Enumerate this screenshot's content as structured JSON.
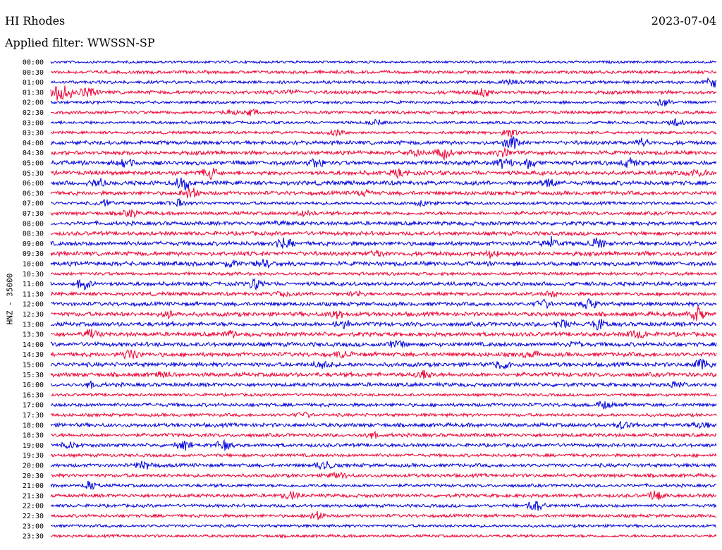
{
  "header": {
    "station": "HI Rhodes",
    "date": "2023-07-04",
    "filter": "Applied filter: WWSSN-SP"
  },
  "chart_data": {
    "type": "line",
    "title": "HI Rhodes",
    "ylabel": "HNZ - 35000",
    "row_labels": [
      "00:00",
      "00:30",
      "01:00",
      "01:30",
      "02:00",
      "02:30",
      "03:00",
      "03:30",
      "04:00",
      "04:30",
      "05:00",
      "05:30",
      "06:00",
      "06:30",
      "07:00",
      "07:30",
      "08:00",
      "08:30",
      "09:00",
      "09:30",
      "10:00",
      "10:30",
      "11:00",
      "11:30",
      "12:00",
      "12:30",
      "13:00",
      "13:30",
      "14:00",
      "14:30",
      "15:00",
      "15:30",
      "16:00",
      "16:30",
      "17:00",
      "17:30",
      "18:00",
      "18:30",
      "19:00",
      "19:30",
      "20:00",
      "20:30",
      "21:00",
      "21:30",
      "22:00",
      "22:30",
      "23:00",
      "23:30"
    ],
    "series_colors": [
      "#0000dd",
      "#ee0033"
    ],
    "traces": [
      {
        "label": "00:00",
        "level": 0.3,
        "bursts": []
      },
      {
        "label": "00:30",
        "level": 0.5,
        "bursts": []
      },
      {
        "label": "01:00",
        "level": 0.5,
        "bursts": [
          [
            0.69,
            0.25
          ],
          [
            0.995,
            0.7
          ]
        ]
      },
      {
        "label": "01:30",
        "level": 0.6,
        "bursts": [
          [
            0.01,
            0.8
          ],
          [
            0.02,
            1.0
          ],
          [
            0.055,
            0.7
          ],
          [
            0.36,
            0.3
          ],
          [
            0.65,
            0.5
          ]
        ]
      },
      {
        "label": "02:00",
        "level": 0.4,
        "bursts": [
          [
            0.92,
            0.5
          ]
        ]
      },
      {
        "label": "02:30",
        "level": 0.5,
        "bursts": [
          [
            0.27,
            0.3
          ],
          [
            0.3,
            0.35
          ]
        ]
      },
      {
        "label": "03:00",
        "level": 0.4,
        "bursts": [
          [
            0.49,
            0.3
          ],
          [
            0.94,
            0.4
          ]
        ]
      },
      {
        "label": "03:30",
        "level": 0.4,
        "bursts": [
          [
            0.43,
            0.4
          ],
          [
            0.69,
            0.6
          ]
        ]
      },
      {
        "label": "04:00",
        "level": 0.7,
        "bursts": [
          [
            0.69,
            0.9
          ],
          [
            0.89,
            0.5
          ]
        ]
      },
      {
        "label": "04:30",
        "level": 0.7,
        "bursts": [
          [
            0.55,
            0.4
          ],
          [
            0.59,
            0.6
          ],
          [
            0.68,
            0.5
          ]
        ]
      },
      {
        "label": "05:00",
        "level": 0.8,
        "bursts": [
          [
            0.11,
            0.7
          ],
          [
            0.4,
            0.6
          ],
          [
            0.68,
            0.6
          ],
          [
            0.72,
            0.6
          ],
          [
            0.87,
            0.5
          ]
        ]
      },
      {
        "label": "05:30",
        "level": 0.8,
        "bursts": [
          [
            0.24,
            0.6
          ],
          [
            0.52,
            0.4
          ],
          [
            0.97,
            0.5
          ]
        ]
      },
      {
        "label": "06:00",
        "level": 0.8,
        "bursts": [
          [
            0.07,
            0.5
          ],
          [
            0.2,
            0.9
          ],
          [
            0.75,
            0.5
          ]
        ]
      },
      {
        "label": "06:30",
        "level": 0.7,
        "bursts": [
          [
            0.21,
            0.7
          ],
          [
            0.47,
            0.3
          ]
        ]
      },
      {
        "label": "07:00",
        "level": 0.5,
        "bursts": [
          [
            0.08,
            0.4
          ],
          [
            0.19,
            0.4
          ],
          [
            0.56,
            0.3
          ]
        ]
      },
      {
        "label": "07:30",
        "level": 0.6,
        "bursts": [
          [
            0.12,
            0.4
          ],
          [
            0.38,
            0.3
          ]
        ]
      },
      {
        "label": "08:00",
        "level": 0.7,
        "bursts": [
          [
            0.34,
            0.2
          ]
        ]
      },
      {
        "label": "08:30",
        "level": 0.7,
        "bursts": []
      },
      {
        "label": "09:00",
        "level": 0.8,
        "bursts": [
          [
            0.35,
            0.6
          ],
          [
            0.75,
            0.7
          ],
          [
            0.82,
            0.6
          ]
        ]
      },
      {
        "label": "09:30",
        "level": 0.8,
        "bursts": [
          [
            0.49,
            0.3
          ],
          [
            0.66,
            0.4
          ]
        ]
      },
      {
        "label": "10:00",
        "level": 0.8,
        "bursts": [
          [
            0.27,
            0.4
          ],
          [
            0.32,
            0.5
          ]
        ]
      },
      {
        "label": "10:30",
        "level": 0.5,
        "bursts": []
      },
      {
        "label": "11:00",
        "level": 0.7,
        "bursts": [
          [
            0.05,
            0.6
          ],
          [
            0.31,
            0.7
          ]
        ]
      },
      {
        "label": "11:30",
        "level": 0.6,
        "bursts": [
          [
            0.35,
            0.3
          ],
          [
            0.46,
            0.3
          ],
          [
            0.75,
            0.3
          ]
        ]
      },
      {
        "label": "12:00",
        "level": 0.7,
        "bursts": [
          [
            0.74,
            0.5
          ],
          [
            0.81,
            0.6
          ]
        ]
      },
      {
        "label": "12:30",
        "level": 0.8,
        "bursts": [
          [
            0.18,
            0.4
          ],
          [
            0.43,
            0.4
          ],
          [
            0.97,
            0.9
          ]
        ]
      },
      {
        "label": "13:00",
        "level": 0.8,
        "bursts": [
          [
            0.44,
            0.4
          ],
          [
            0.77,
            0.5
          ],
          [
            0.82,
            0.6
          ]
        ]
      },
      {
        "label": "13:30",
        "level": 0.8,
        "bursts": [
          [
            0.06,
            0.5
          ],
          [
            0.27,
            0.3
          ],
          [
            0.88,
            0.6
          ]
        ]
      },
      {
        "label": "14:00",
        "level": 0.8,
        "bursts": [
          [
            0.52,
            0.4
          ],
          [
            0.79,
            0.4
          ]
        ]
      },
      {
        "label": "14:30",
        "level": 0.8,
        "bursts": [
          [
            0.12,
            0.6
          ],
          [
            0.44,
            0.4
          ],
          [
            0.72,
            0.4
          ]
        ]
      },
      {
        "label": "15:00",
        "level": 0.8,
        "bursts": [
          [
            0.41,
            0.5
          ],
          [
            0.68,
            0.5
          ],
          [
            0.98,
            0.7
          ]
        ]
      },
      {
        "label": "15:30",
        "level": 0.8,
        "bursts": [
          [
            0.17,
            0.3
          ],
          [
            0.56,
            0.6
          ]
        ]
      },
      {
        "label": "16:00",
        "level": 0.7,
        "bursts": [
          [
            0.06,
            0.3
          ],
          [
            0.94,
            0.3
          ]
        ]
      },
      {
        "label": "16:30",
        "level": 0.4,
        "bursts": []
      },
      {
        "label": "17:00",
        "level": 0.6,
        "bursts": [
          [
            0.83,
            0.4
          ]
        ]
      },
      {
        "label": "17:30",
        "level": 0.5,
        "bursts": [
          [
            0.38,
            0.3
          ]
        ]
      },
      {
        "label": "18:00",
        "level": 0.7,
        "bursts": [
          [
            0.86,
            0.4
          ],
          [
            0.98,
            0.4
          ]
        ]
      },
      {
        "label": "18:30",
        "level": 0.6,
        "bursts": [
          [
            0.48,
            0.4
          ]
        ]
      },
      {
        "label": "19:00",
        "level": 0.6,
        "bursts": [
          [
            0.03,
            0.4
          ],
          [
            0.2,
            0.5
          ],
          [
            0.26,
            0.5
          ]
        ]
      },
      {
        "label": "19:30",
        "level": 0.5,
        "bursts": []
      },
      {
        "label": "20:00",
        "level": 0.6,
        "bursts": [
          [
            0.14,
            0.5
          ],
          [
            0.41,
            0.7
          ]
        ]
      },
      {
        "label": "20:30",
        "level": 0.6,
        "bursts": [
          [
            0.43,
            0.3
          ]
        ]
      },
      {
        "label": "21:00",
        "level": 0.5,
        "bursts": [
          [
            0.06,
            0.6
          ]
        ]
      },
      {
        "label": "21:30",
        "level": 0.6,
        "bursts": [
          [
            0.36,
            0.5
          ],
          [
            0.91,
            0.6
          ]
        ]
      },
      {
        "label": "22:00",
        "level": 0.5,
        "bursts": [
          [
            0.73,
            0.7
          ]
        ]
      },
      {
        "label": "22:30",
        "level": 0.5,
        "bursts": [
          [
            0.4,
            0.5
          ]
        ]
      },
      {
        "label": "23:00",
        "level": 0.4,
        "bursts": []
      },
      {
        "label": "23:30",
        "level": 0.4,
        "bursts": []
      }
    ]
  }
}
